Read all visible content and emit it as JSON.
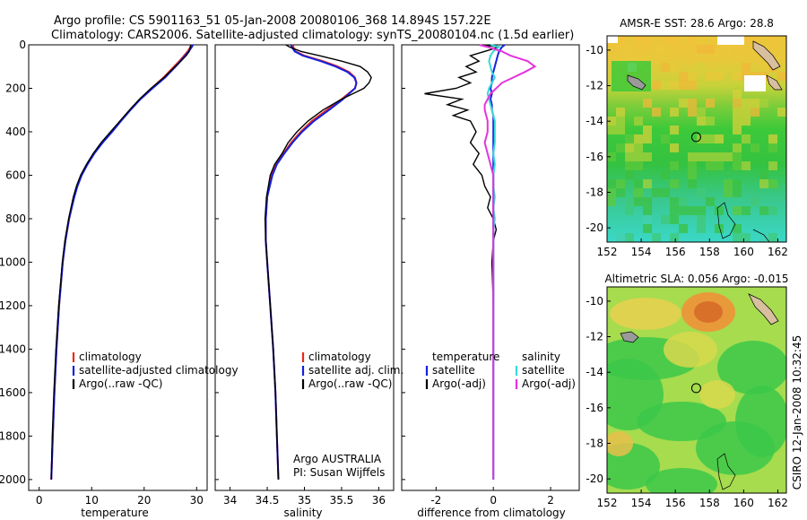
{
  "title": {
    "line1": "Argo profile: CS 5901163_51 05-Jan-2008 20080106_368 14.894S 157.22E",
    "line2": "Climatology: CARS2006. Satellite-adjusted climatology: synTS_20080104.nc (1.5d earlier)"
  },
  "side_text": "CSIRO 12-Jan-2008 10:32:45",
  "colors": {
    "clim": "#e8281e",
    "sat": "#1420e0",
    "argo": "#000000",
    "sal_sat": "#36d8d8",
    "sal_argo": "#e632dc"
  },
  "chart_data": [
    {
      "type": "line",
      "id": "temperature",
      "xlabel": "temperature",
      "xlim": [
        -2,
        32
      ],
      "ylim": [
        2050,
        0
      ],
      "xticks": [
        "0",
        "10",
        "20",
        "30"
      ],
      "yticks": [
        "0",
        "200",
        "400",
        "600",
        "800",
        "1000",
        "1200",
        "1400",
        "1600",
        "1800",
        "2000"
      ],
      "legend": [
        "climatology",
        "satellite-adjusted climatology",
        "Argo(..raw -QC)"
      ],
      "depth": [
        0,
        10,
        30,
        50,
        75,
        100,
        150,
        200,
        250,
        300,
        350,
        400,
        450,
        500,
        550,
        600,
        650,
        700,
        800,
        900,
        1000,
        1200,
        1400,
        1600,
        1800,
        2000
      ],
      "series": [
        {
          "name": "climatology",
          "color_key": "clim",
          "values": [
            28.9,
            28.8,
            28.3,
            27.6,
            26.7,
            25.7,
            23.7,
            21.4,
            19.2,
            17.3,
            15.5,
            13.8,
            12.0,
            10.4,
            9.1,
            8.0,
            7.2,
            6.6,
            5.7,
            5.0,
            4.5,
            3.8,
            3.3,
            2.9,
            2.6,
            2.3
          ]
        },
        {
          "name": "satellite-adjusted climatology",
          "color_key": "sat",
          "values": [
            29.3,
            29.1,
            28.5,
            27.8,
            26.9,
            26.0,
            24.0,
            21.6,
            19.3,
            17.4,
            15.6,
            13.9,
            12.1,
            10.5,
            9.2,
            8.1,
            7.3,
            6.7,
            5.7,
            5.0,
            4.5,
            3.8,
            3.3,
            2.9,
            2.6,
            2.3
          ]
        },
        {
          "name": "Argo(..raw -QC)",
          "color_key": "argo",
          "values": [
            28.9,
            28.8,
            28.6,
            28.0,
            27.0,
            25.9,
            23.8,
            21.3,
            19.1,
            17.2,
            15.4,
            13.6,
            11.8,
            10.3,
            9.0,
            7.9,
            7.1,
            6.5,
            5.6,
            4.9,
            4.4,
            3.7,
            3.2,
            2.8,
            2.5,
            2.3
          ]
        }
      ]
    },
    {
      "type": "line",
      "id": "salinity",
      "xlabel": "salinity",
      "xlim": [
        33.8,
        36.2
      ],
      "ylim": [
        2050,
        0
      ],
      "xticks": [
        "34",
        "34.5",
        "35",
        "35.5",
        "36"
      ],
      "legend": [
        "climatology",
        "satellite adj. clim.",
        "Argo(..raw -QC)"
      ],
      "annotation": [
        "Argo AUSTRALIA",
        "PI: Susan Wijffels"
      ],
      "depth": [
        0,
        10,
        30,
        50,
        75,
        100,
        125,
        150,
        175,
        200,
        250,
        300,
        350,
        400,
        450,
        500,
        550,
        600,
        700,
        800,
        900,
        1000,
        1200,
        1400,
        1600,
        1800,
        2000
      ],
      "series": [
        {
          "name": "climatology",
          "color_key": "clim",
          "values": [
            34.85,
            34.85,
            34.88,
            35.0,
            35.25,
            35.45,
            35.6,
            35.68,
            35.7,
            35.68,
            35.5,
            35.3,
            35.1,
            34.95,
            34.82,
            34.72,
            34.62,
            34.56,
            34.5,
            34.48,
            34.48,
            34.5,
            34.54,
            34.58,
            34.61,
            34.63,
            34.65
          ]
        },
        {
          "name": "satellite adj. clim.",
          "color_key": "sat",
          "values": [
            34.82,
            34.83,
            34.87,
            34.98,
            35.22,
            35.42,
            35.58,
            35.67,
            35.7,
            35.68,
            35.52,
            35.33,
            35.13,
            34.97,
            34.84,
            34.73,
            34.63,
            34.57,
            34.5,
            34.48,
            34.48,
            34.5,
            34.54,
            34.58,
            34.61,
            34.63,
            34.65
          ]
        },
        {
          "name": "Argo(..raw -QC)",
          "color_key": "argo",
          "values": [
            34.75,
            34.8,
            34.95,
            35.2,
            35.5,
            35.75,
            35.85,
            35.9,
            35.87,
            35.8,
            35.5,
            35.25,
            35.05,
            34.9,
            34.78,
            34.7,
            34.6,
            34.54,
            34.49,
            34.47,
            34.48,
            34.5,
            34.54,
            34.58,
            34.61,
            34.63,
            34.65
          ]
        }
      ]
    },
    {
      "type": "line",
      "id": "difference",
      "xlabel": "difference from climatology",
      "xlim": [
        -3.2,
        3.0
      ],
      "ylim": [
        2050,
        0
      ],
      "xticks": [
        "-2",
        "0",
        "2"
      ],
      "legend_left": [
        "temperature",
        "satellite",
        "Argo(-adj)"
      ],
      "legend_right": [
        "salinity",
        "satellite",
        "Argo(-adj)"
      ],
      "depth": [
        0,
        10,
        30,
        50,
        75,
        100,
        125,
        150,
        175,
        200,
        225,
        250,
        275,
        300,
        325,
        350,
        400,
        450,
        500,
        550,
        600,
        650,
        700,
        750,
        800,
        850,
        900,
        1000,
        1200,
        1400,
        1600,
        1800,
        2000
      ],
      "series": [
        {
          "name": "temperature satellite",
          "color_key": "sat",
          "values": [
            0.4,
            0.3,
            0.2,
            0.15,
            0.1,
            0.05,
            0.0,
            -0.05,
            -0.05,
            -0.1,
            -0.05,
            -0.1,
            -0.05,
            -0.05,
            0.0,
            0.0,
            0.0,
            0.0,
            0.0,
            0.0,
            0.0,
            0.0,
            0.0,
            0.0,
            0.0,
            0.0,
            0.0,
            0.0,
            0.0,
            0.0,
            0.0,
            0.0,
            0.0
          ]
        },
        {
          "name": "temperature Argo(-adj)",
          "color_key": "argo",
          "values": [
            -0.4,
            0.2,
            -0.3,
            -0.8,
            -0.5,
            -0.95,
            -0.6,
            -1.2,
            -0.8,
            -1.3,
            -2.4,
            -1.1,
            -1.6,
            -0.9,
            -1.4,
            -0.8,
            -0.6,
            -0.8,
            -0.5,
            -0.7,
            -0.4,
            -0.3,
            -0.1,
            -0.2,
            0.0,
            0.1,
            0.0,
            -0.05,
            0.0,
            0.0,
            0.0,
            0.0,
            0.0
          ]
        },
        {
          "name": "salinity satellite",
          "color_key": "sal_sat",
          "values": [
            -0.1,
            0.2,
            0.0,
            -0.1,
            -0.15,
            -0.1,
            -0.05,
            0.05,
            -0.05,
            -0.15,
            -0.2,
            -0.15,
            -0.1,
            -0.05,
            0.0,
            0.05,
            0.05,
            0.05,
            0.0,
            0.05,
            0.0,
            0.0,
            0.05,
            0.0,
            0.05,
            0.0,
            0.0,
            0.0,
            0.0,
            0.0,
            0.0,
            0.0,
            0.0
          ]
        },
        {
          "name": "salinity Argo(-adj)",
          "color_key": "sal_argo",
          "values": [
            -0.5,
            -0.2,
            0.3,
            0.6,
            1.2,
            1.45,
            1.1,
            0.7,
            0.3,
            0.1,
            -0.1,
            -0.2,
            -0.3,
            -0.3,
            -0.25,
            -0.2,
            -0.2,
            -0.3,
            -0.2,
            -0.1,
            0.0,
            0.0,
            0.0,
            0.0,
            0.0,
            0.0,
            0.0,
            0.0,
            0.0,
            0.0,
            0.0,
            0.0,
            0.0
          ]
        }
      ]
    },
    {
      "type": "heatmap",
      "id": "sst",
      "title": "AMSR-E SST: 28.6 Argo: 28.8",
      "xlim": [
        152,
        162.5
      ],
      "ylim": [
        -20.8,
        -9.2
      ],
      "xticks": [
        "152",
        "154",
        "156",
        "158",
        "160",
        "162"
      ],
      "yticks": [
        "-10",
        "-12",
        "-14",
        "-16",
        "-18",
        "-20"
      ],
      "marker": [
        157.22,
        -14.894
      ]
    },
    {
      "type": "heatmap",
      "id": "sla",
      "title": "Altimetric SLA: 0.056 Argo: -0.015",
      "xlim": [
        152,
        162.5
      ],
      "ylim": [
        -20.8,
        -9.2
      ],
      "xticks": [
        "152",
        "154",
        "156",
        "158",
        "160",
        "162"
      ],
      "yticks": [
        "-10",
        "-12",
        "-14",
        "-16",
        "-18",
        "-20"
      ],
      "marker": [
        157.22,
        -14.894
      ]
    }
  ]
}
